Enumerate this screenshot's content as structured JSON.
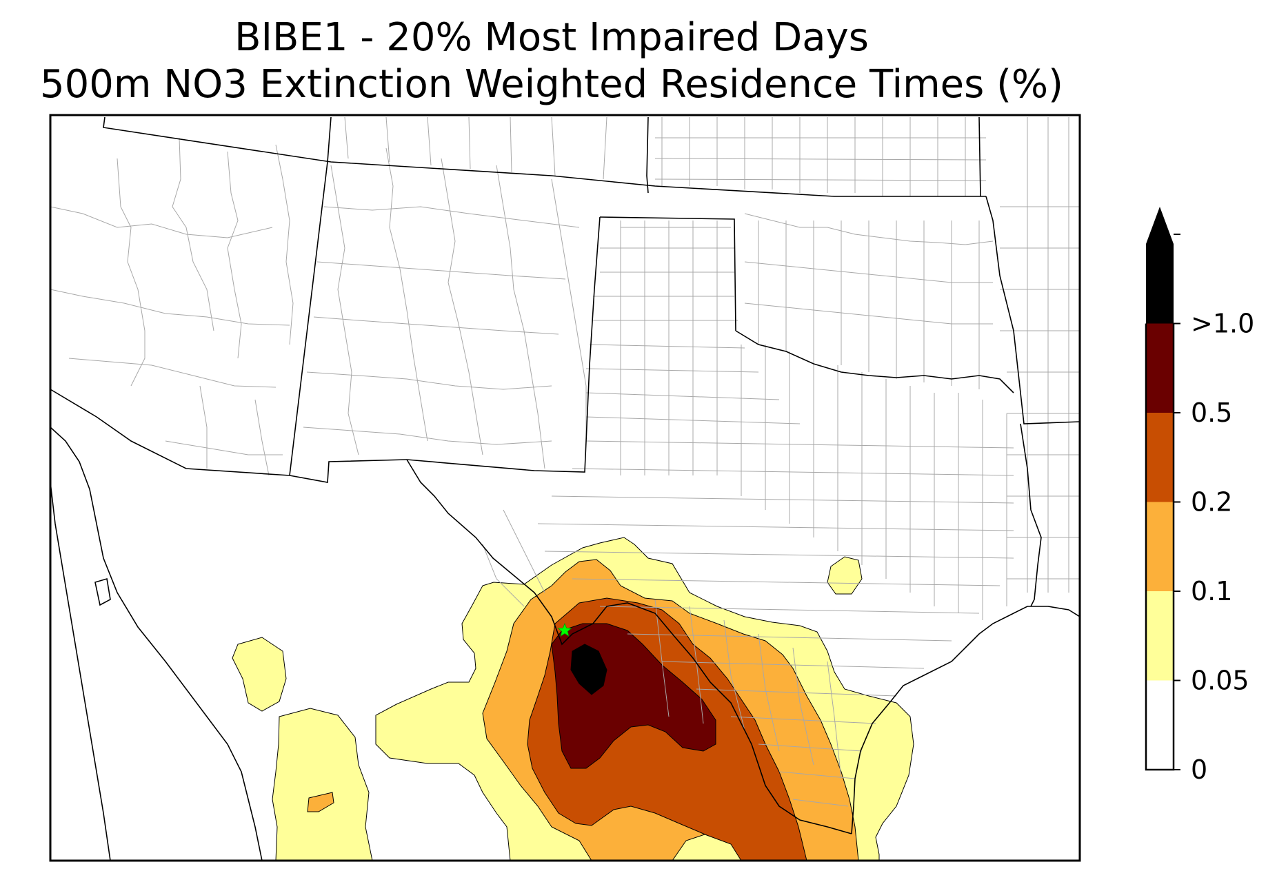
{
  "title": {
    "line1": "BIBE1 - 20% Most Impaired Days",
    "line2": "500m NO3 Extinction Weighted Residence Times (%)"
  },
  "site_marker": {
    "symbol": "star",
    "color": "#00ff00"
  },
  "colorbar": {
    "extend": "max",
    "levels": [
      "0",
      "0.05",
      "0.1",
      "0.2",
      "0.5",
      ">1.0"
    ],
    "bands": [
      {
        "from": "0",
        "to": "0.05",
        "color": "#ffffff"
      },
      {
        "from": "0.05",
        "to": "0.1",
        "color": "#ffff99"
      },
      {
        "from": "0.1",
        "to": "0.2",
        "color": "#fcb03a"
      },
      {
        "from": "0.2",
        "to": "0.5",
        "color": "#c84e02"
      },
      {
        "from": "0.5",
        "to": "1.0",
        "color": "#6a0000"
      },
      {
        "from": "1.0",
        "to": "max",
        "color": "#000000"
      }
    ]
  },
  "map_colors": {
    "county_lines": "#a8a8a8",
    "state_lines": "#000000",
    "coast_lines": "#000000"
  }
}
